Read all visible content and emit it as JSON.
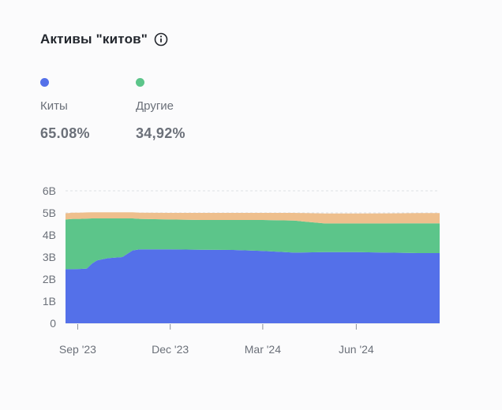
{
  "header": {
    "title": "Активы \"китов\"",
    "info_icon": "info-circle-icon"
  },
  "legend": [
    {
      "label": "Киты",
      "value": "65.08%",
      "color": "#5470e9"
    },
    {
      "label": "Другие",
      "value": "34,92%",
      "color": "#5cc58a"
    }
  ],
  "chart_data": {
    "type": "area",
    "stacked": true,
    "x_ticks": [
      "Sep '23",
      "Dec '23",
      "Mar '24",
      "Jun '24"
    ],
    "y_ticks": [
      "0",
      "1B",
      "2B",
      "3B",
      "4B",
      "5B",
      "6B"
    ],
    "ylim": [
      0,
      6000000000
    ],
    "grid": true,
    "x": [
      "2023-08-20",
      "2023-08-27",
      "2023-09-03",
      "2023-09-10",
      "2023-09-15",
      "2023-09-20",
      "2023-10-01",
      "2023-10-15",
      "2023-10-25",
      "2023-11-01",
      "2023-12-01",
      "2024-01-01",
      "2024-02-01",
      "2024-03-01",
      "2024-04-01",
      "2024-05-01",
      "2024-06-01",
      "2024-07-01",
      "2024-08-01",
      "2024-08-22"
    ],
    "series": [
      {
        "name": "Киты",
        "color": "#5470e9",
        "values": [
          2450000000.0,
          2450000000.0,
          2460000000.0,
          2480000000.0,
          2700000000.0,
          2850000000.0,
          2950000000.0,
          3000000000.0,
          3300000000.0,
          3350000000.0,
          3350000000.0,
          3330000000.0,
          3320000000.0,
          3280000000.0,
          3200000000.0,
          3220000000.0,
          3220000000.0,
          3200000000.0,
          3180000000.0,
          3180000000.0
        ]
      },
      {
        "name": "Другие",
        "color": "#5cc58a",
        "values": [
          2250000000.0,
          2280000000.0,
          2270000000.0,
          2260000000.0,
          2050000000.0,
          1900000000.0,
          1800000000.0,
          1750000000.0,
          1450000000.0,
          1380000000.0,
          1350000000.0,
          1350000000.0,
          1360000000.0,
          1400000000.0,
          1450000000.0,
          1300000000.0,
          1300000000.0,
          1320000000.0,
          1350000000.0,
          1350000000.0
        ]
      },
      {
        "color": "#eebf8d",
        "values": [
          280000000.0,
          280000000.0,
          280000000.0,
          280000000.0,
          280000000.0,
          280000000.0,
          280000000.0,
          280000000.0,
          280000000.0,
          280000000.0,
          300000000.0,
          320000000.0,
          320000000.0,
          320000000.0,
          350000000.0,
          450000000.0,
          450000000.0,
          460000000.0,
          460000000.0,
          460000000.0
        ]
      }
    ]
  }
}
